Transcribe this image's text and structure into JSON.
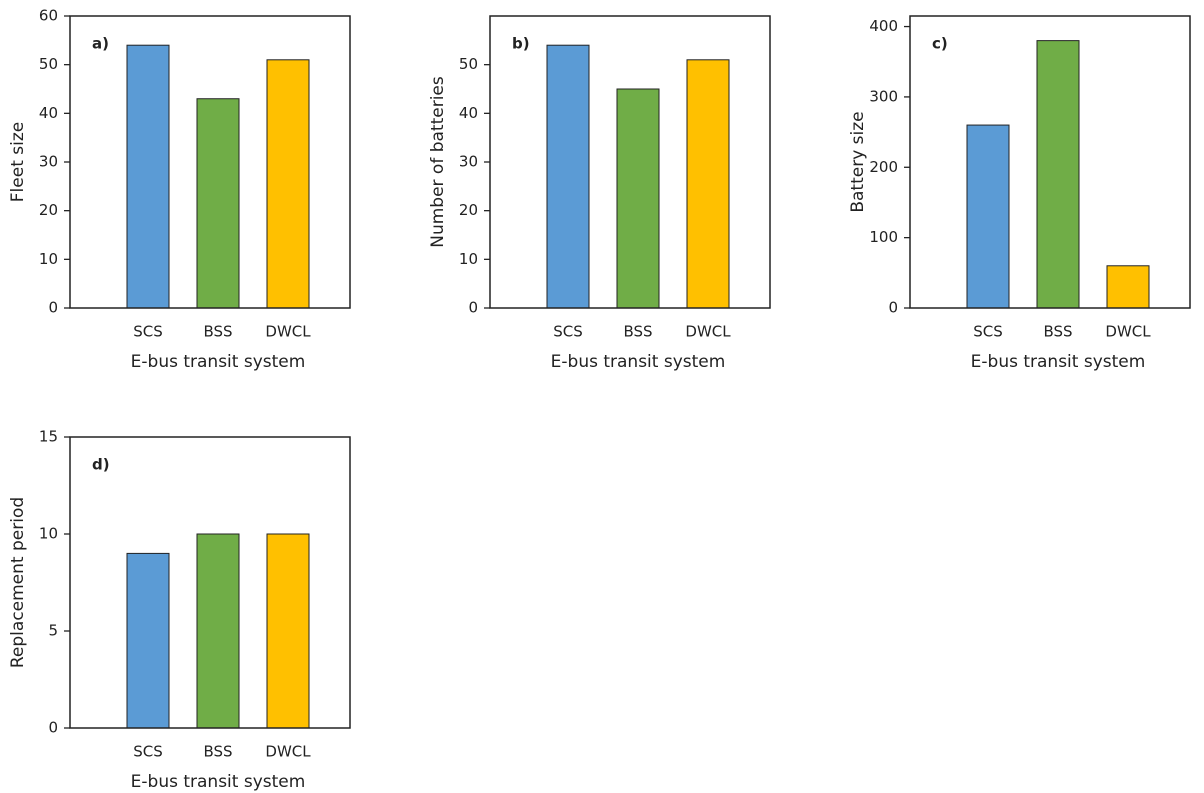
{
  "chart_data": [
    {
      "type": "bar",
      "panel_label": "a)",
      "xlabel": "E-bus transit system",
      "ylabel": "Fleet size",
      "categories": [
        "SCS",
        "BSS",
        "DWCL"
      ],
      "values": [
        54,
        43,
        51
      ],
      "colors": [
        "#5b9bd5",
        "#70ad47",
        "#ffc000"
      ],
      "ylim": [
        0,
        60
      ],
      "yticks": [
        0,
        10,
        20,
        30,
        40,
        50,
        60
      ]
    },
    {
      "type": "bar",
      "panel_label": "b)",
      "xlabel": "E-bus transit system",
      "ylabel": "Number of batteries",
      "categories": [
        "SCS",
        "BSS",
        "DWCL"
      ],
      "values": [
        54,
        45,
        51
      ],
      "colors": [
        "#5b9bd5",
        "#70ad47",
        "#ffc000"
      ],
      "ylim": [
        0,
        60
      ],
      "yticks": [
        0,
        10,
        20,
        30,
        40,
        50
      ]
    },
    {
      "type": "bar",
      "panel_label": "c)",
      "xlabel": "E-bus transit system",
      "ylabel": "Battery size",
      "categories": [
        "SCS",
        "BSS",
        "DWCL"
      ],
      "values": [
        260,
        380,
        60
      ],
      "colors": [
        "#5b9bd5",
        "#70ad47",
        "#ffc000"
      ],
      "ylim": [
        0,
        415
      ],
      "yticks": [
        0,
        100,
        200,
        300,
        400
      ]
    },
    {
      "type": "bar",
      "panel_label": "d)",
      "xlabel": "E-bus transit system",
      "ylabel": "Replacement period",
      "categories": [
        "SCS",
        "BSS",
        "DWCL"
      ],
      "values": [
        9,
        10,
        10
      ],
      "colors": [
        "#5b9bd5",
        "#70ad47",
        "#ffc000"
      ],
      "ylim": [
        0,
        15
      ],
      "yticks": [
        0,
        5,
        10,
        15
      ]
    }
  ]
}
